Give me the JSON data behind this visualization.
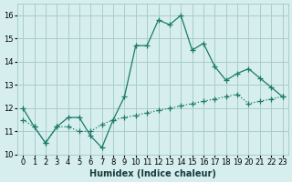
{
  "xlabel": "Humidex (Indice chaleur)",
  "ylabel": "",
  "bg_color": "#d6eeee",
  "grid_color": "#aacccc",
  "line_color": "#1a7a6a",
  "xlim": [
    -0.5,
    23.5
  ],
  "ylim": [
    10,
    16.5
  ],
  "yticks": [
    10,
    11,
    12,
    13,
    14,
    15,
    16
  ],
  "xticks": [
    0,
    1,
    2,
    3,
    4,
    5,
    6,
    7,
    8,
    9,
    10,
    11,
    12,
    13,
    14,
    15,
    16,
    17,
    18,
    19,
    20,
    21,
    22,
    23
  ],
  "series1_x": [
    0,
    1,
    2,
    3,
    4,
    5,
    6,
    7,
    8,
    9,
    10,
    11,
    12,
    13,
    14,
    15,
    16,
    17,
    18,
    19,
    20,
    21,
    22,
    23
  ],
  "series1_y": [
    12.0,
    11.2,
    10.5,
    11.2,
    11.6,
    11.6,
    10.8,
    10.3,
    11.5,
    12.5,
    14.7,
    14.7,
    15.8,
    15.6,
    16.0,
    14.5,
    14.8,
    13.8,
    13.2,
    13.5,
    13.7,
    13.3,
    12.9,
    12.5
  ],
  "series2_x": [
    0,
    1,
    2,
    3,
    4,
    5,
    6,
    7,
    8,
    9,
    10,
    11,
    12,
    13,
    14,
    15,
    16,
    17,
    18,
    19,
    20,
    21,
    22,
    23
  ],
  "series2_y": [
    11.5,
    11.2,
    10.5,
    11.2,
    11.2,
    11.0,
    11.0,
    11.3,
    11.5,
    11.6,
    11.7,
    11.8,
    11.9,
    12.0,
    12.1,
    12.2,
    12.3,
    12.4,
    12.5,
    12.6,
    12.2,
    12.3,
    12.4,
    12.5
  ]
}
